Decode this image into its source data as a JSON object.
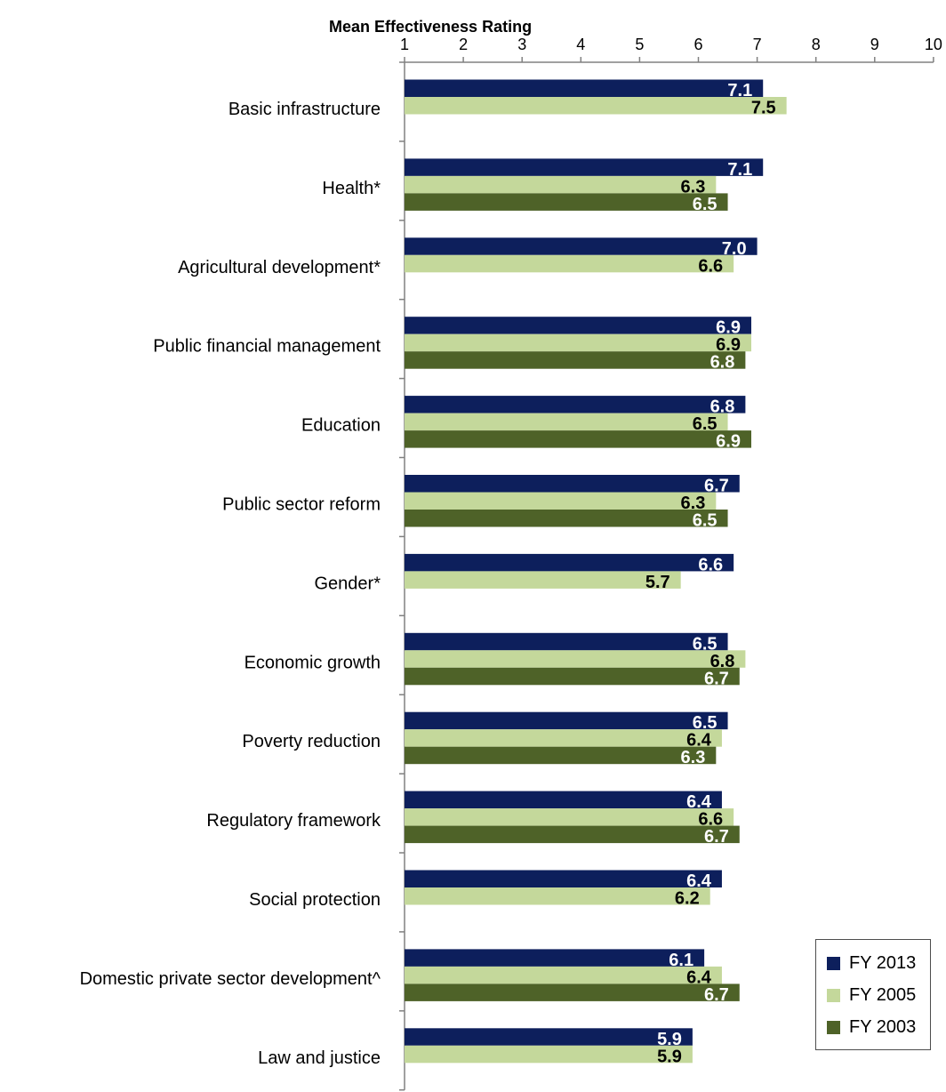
{
  "chart_data": {
    "type": "bar",
    "orientation": "horizontal",
    "title": "Mean Effectiveness Rating",
    "xlim": [
      1,
      10
    ],
    "x_ticks": [
      "1",
      "2",
      "3",
      "4",
      "5",
      "6",
      "7",
      "8",
      "9",
      "10"
    ],
    "categories": [
      "Basic infrastructure",
      "Health*",
      "Agricultural development*",
      "Public financial management",
      "Education",
      "Public sector reform",
      "Gender*",
      "Economic growth",
      "Poverty reduction",
      "Regulatory framework",
      "Social protection",
      "Domestic private sector development^",
      "Law and justice"
    ],
    "series": [
      {
        "name": "FY 2013",
        "color": "#0d1f5c",
        "label_color": "#ffffff",
        "values": [
          7.1,
          7.1,
          7.0,
          6.9,
          6.8,
          6.7,
          6.6,
          6.5,
          6.5,
          6.4,
          6.4,
          6.1,
          5.9
        ],
        "labels": [
          "7.1",
          "7.1",
          "7.0",
          "6.9",
          "6.8",
          "6.7",
          "6.6",
          "6.5",
          "6.5",
          "6.4",
          "6.4",
          "6.1",
          "5.9"
        ]
      },
      {
        "name": "FY 2005",
        "color": "#c4d89b",
        "label_color": "#000000",
        "values": [
          7.5,
          6.3,
          6.6,
          6.9,
          6.5,
          6.3,
          5.7,
          6.8,
          6.4,
          6.6,
          6.2,
          6.4,
          5.9
        ],
        "labels": [
          "7.5",
          "6.3",
          "6.6",
          "6.9",
          "6.5",
          "6.3",
          "5.7",
          "6.8",
          "6.4",
          "6.6",
          "6.2",
          "6.4",
          "5.9"
        ]
      },
      {
        "name": "FY 2003",
        "color": "#4e6228",
        "label_color": "#ffffff",
        "values": [
          null,
          6.5,
          null,
          6.8,
          6.9,
          6.5,
          null,
          6.7,
          6.3,
          6.7,
          null,
          6.7,
          null
        ],
        "labels": [
          null,
          "6.5",
          null,
          "6.8",
          "6.9",
          "6.5",
          null,
          "6.7",
          "6.3",
          "6.7",
          null,
          "6.7",
          null
        ]
      }
    ],
    "legend": {
      "position": "bottom-right",
      "entries": [
        "FY 2013",
        "FY 2005",
        "FY 2003"
      ]
    },
    "grid": false
  }
}
